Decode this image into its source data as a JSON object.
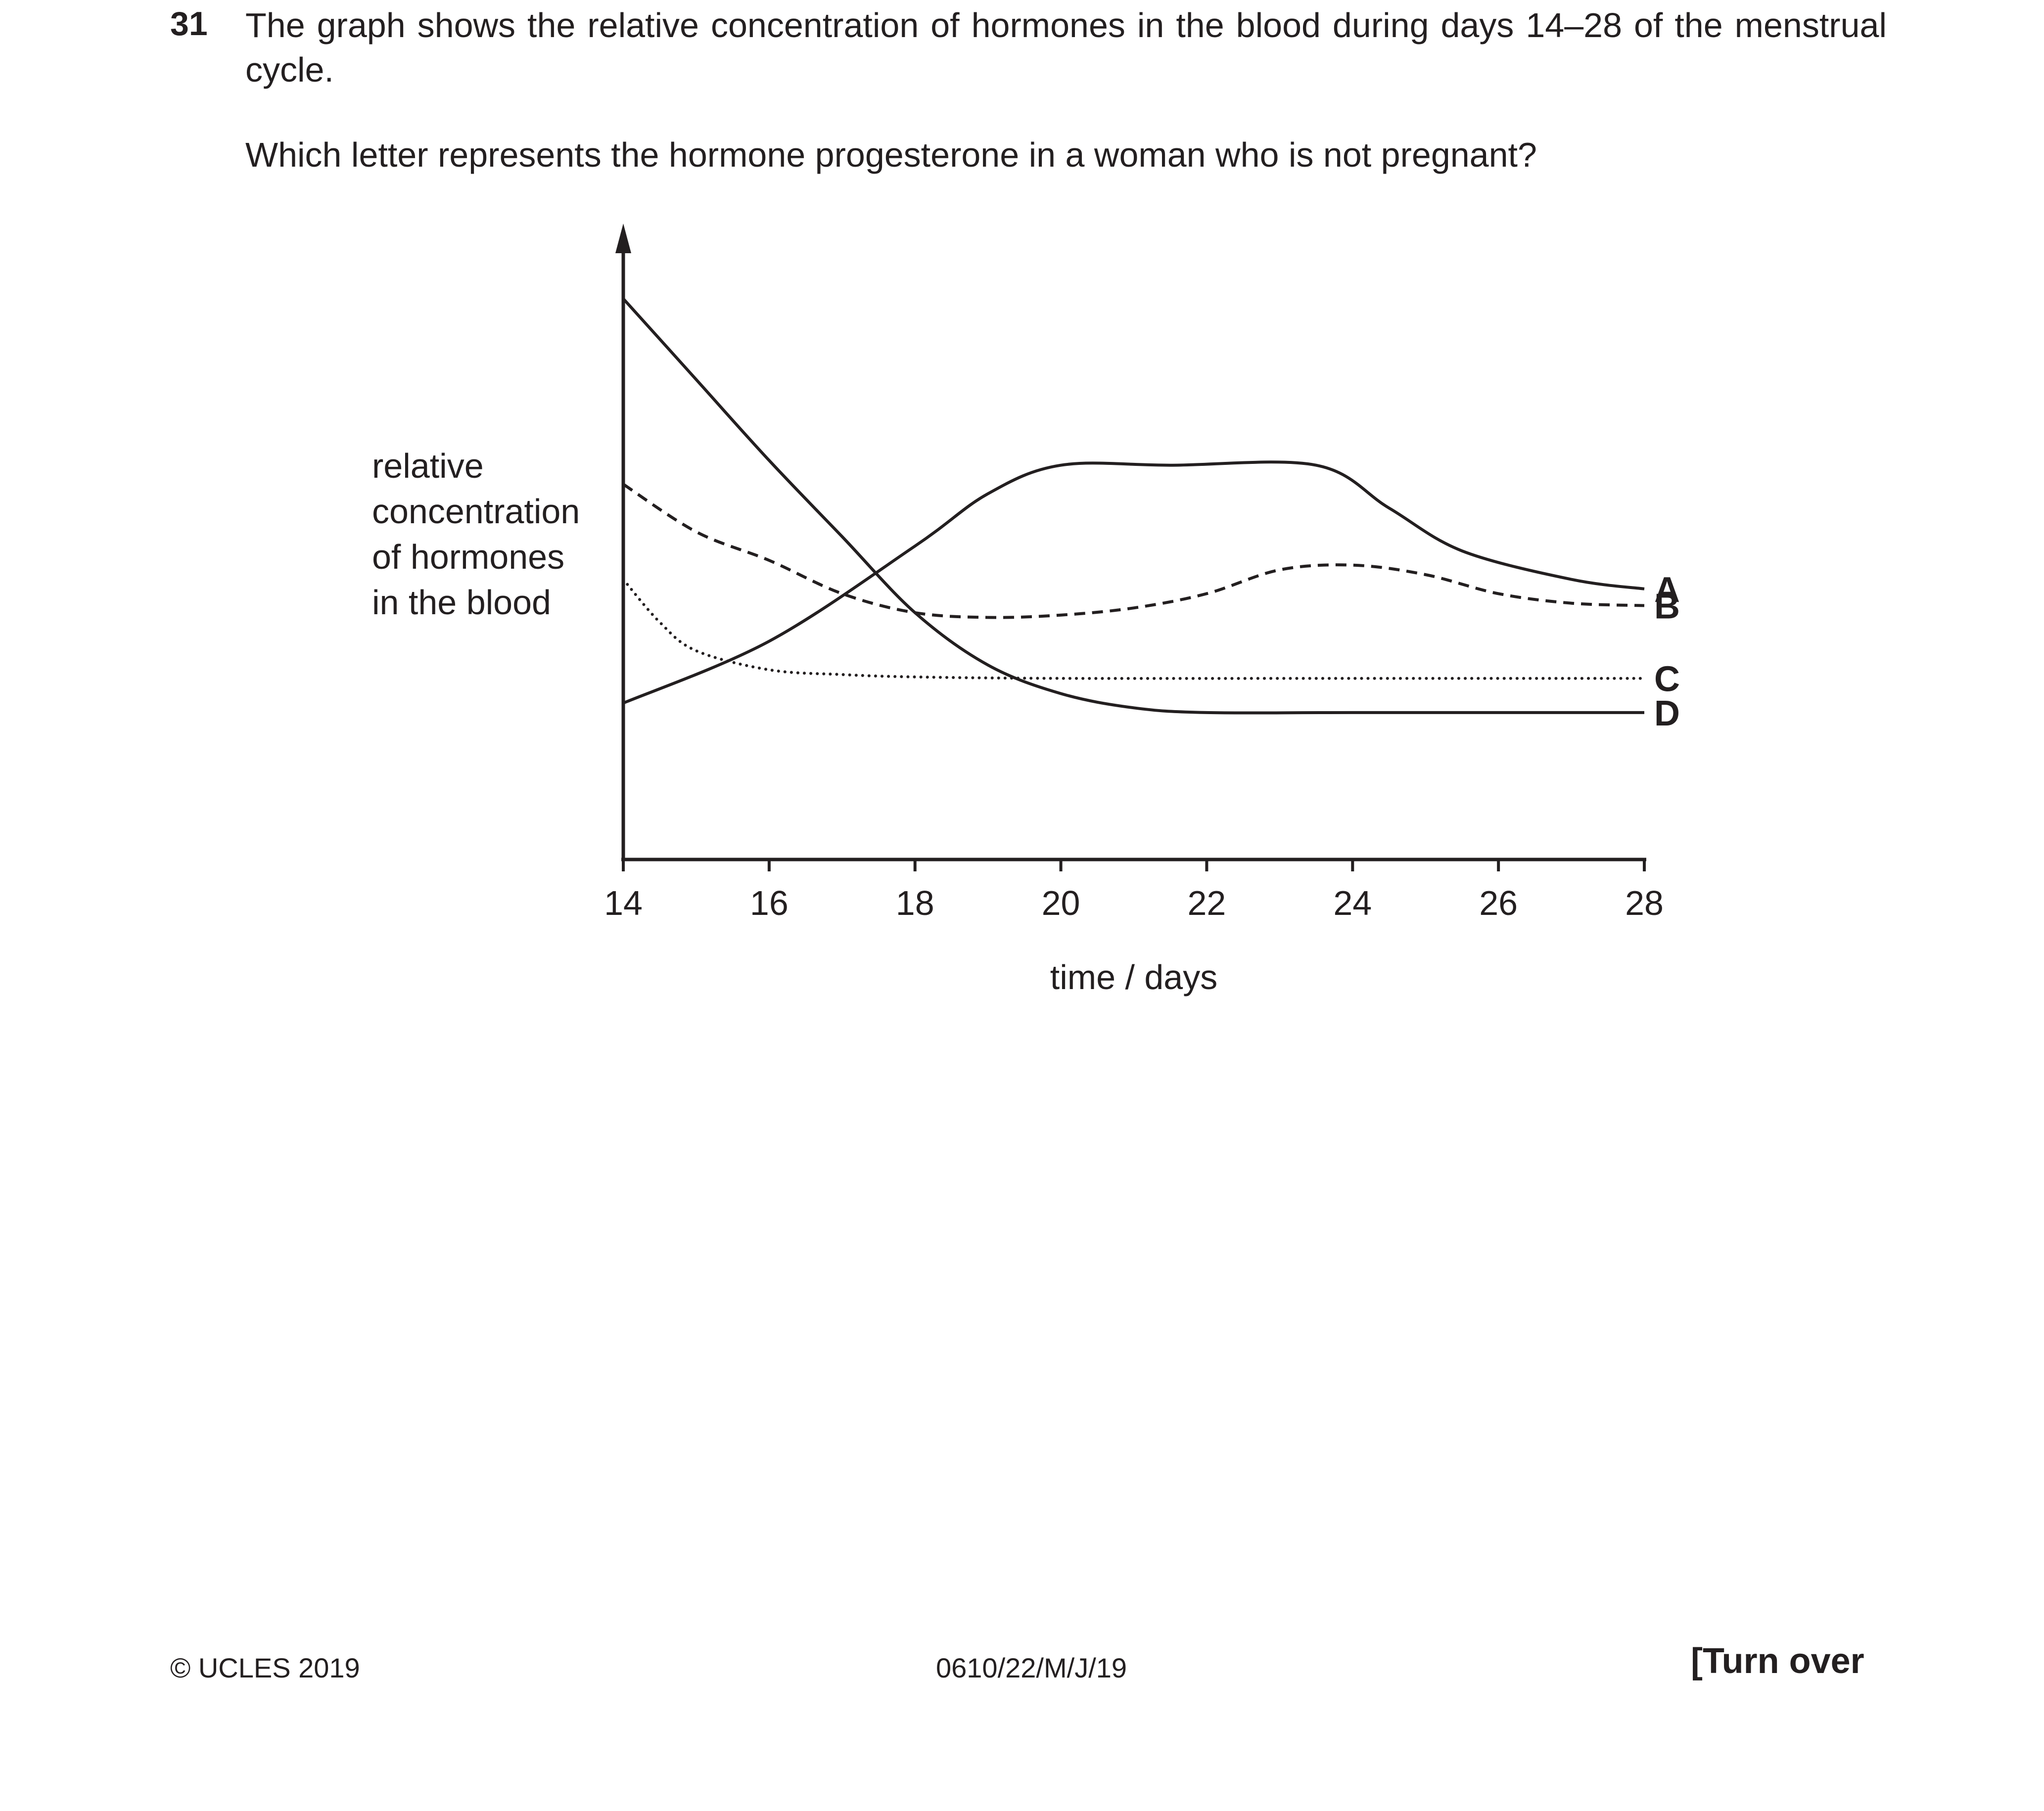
{
  "question": {
    "number": "31",
    "stem": "The graph shows the relative concentration of hormones in the blood during days 14–28 of the menstrual cycle.",
    "prompt": "Which letter represents the hormone progesterone in a woman who is not pregnant?"
  },
  "chart_data": {
    "type": "line",
    "title": "",
    "xlabel": "time / days",
    "ylabel_lines": [
      "relative",
      "concentration",
      "of hormones",
      "in the blood"
    ],
    "xlim": [
      14,
      28
    ],
    "ylim": [
      0,
      100
    ],
    "x_ticks": [
      "14",
      "16",
      "18",
      "20",
      "22",
      "24",
      "26",
      "28"
    ],
    "grid": false,
    "series": [
      {
        "name": "A",
        "style": "solid",
        "points": [
          [
            14,
            15
          ],
          [
            16,
            28
          ],
          [
            18,
            48
          ],
          [
            19,
            59
          ],
          [
            20,
            65
          ],
          [
            21.5,
            65
          ],
          [
            23.5,
            65
          ],
          [
            24.5,
            56
          ],
          [
            25.5,
            47
          ],
          [
            27,
            41
          ],
          [
            28,
            39
          ]
        ]
      },
      {
        "name": "B",
        "style": "dashed",
        "points": [
          [
            14,
            61
          ],
          [
            15,
            51
          ],
          [
            16,
            45
          ],
          [
            17,
            38
          ],
          [
            18,
            34
          ],
          [
            19,
            33
          ],
          [
            20,
            33.5
          ],
          [
            21,
            35
          ],
          [
            22,
            38
          ],
          [
            23,
            43
          ],
          [
            24,
            44
          ],
          [
            25,
            42
          ],
          [
            26,
            38
          ],
          [
            27,
            36
          ],
          [
            28,
            35.5
          ]
        ]
      },
      {
        "name": "C",
        "style": "dotted",
        "points": [
          [
            14,
            41
          ],
          [
            14.5,
            32
          ],
          [
            15,
            26
          ],
          [
            16,
            22
          ],
          [
            17,
            21
          ],
          [
            18,
            20.5
          ],
          [
            20,
            20.2
          ],
          [
            24,
            20.2
          ],
          [
            28,
            20.2
          ]
        ]
      },
      {
        "name": "D",
        "style": "solid",
        "points": [
          [
            14,
            100
          ],
          [
            15,
            83
          ],
          [
            16,
            66
          ],
          [
            17,
            50
          ],
          [
            18,
            34
          ],
          [
            19,
            23
          ],
          [
            20,
            17
          ],
          [
            21,
            14
          ],
          [
            22,
            13
          ],
          [
            24,
            13
          ],
          [
            28,
            13
          ]
        ]
      }
    ]
  },
  "footer": {
    "copyright": "© UCLES 2019",
    "code": "0610/22/M/J/19",
    "turn_over": "[Turn over"
  }
}
